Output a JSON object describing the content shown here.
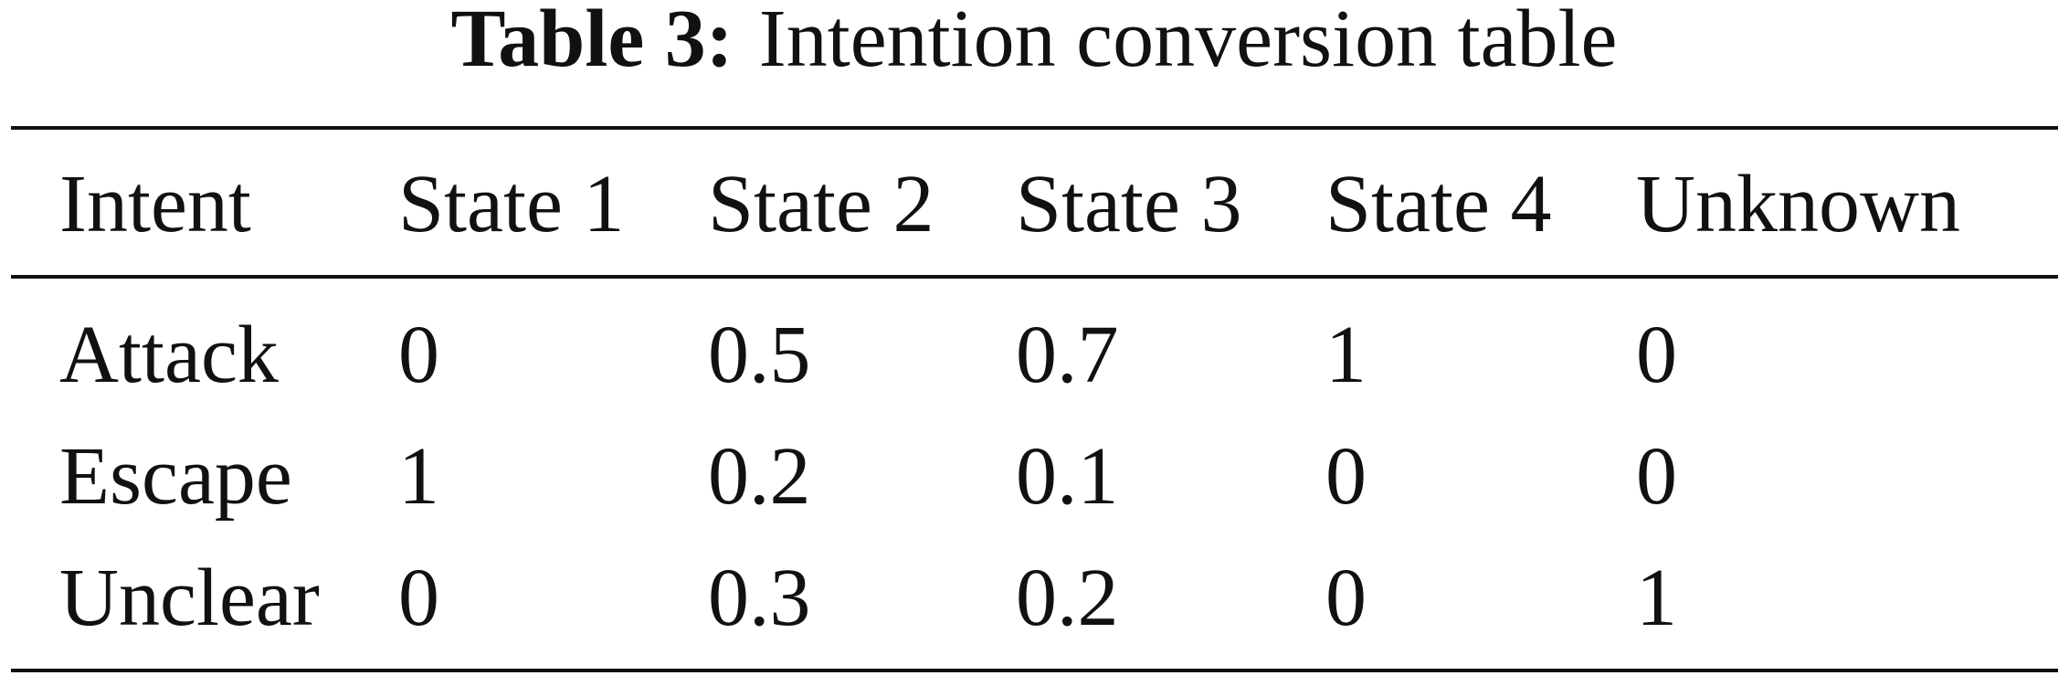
{
  "caption": {
    "label": "Table 3:",
    "title": "Intention conversion table"
  },
  "table": {
    "header": [
      "Intent",
      "State 1",
      "State 2",
      "State 3",
      "State 4",
      "Unknown"
    ],
    "rows": [
      [
        "Attack",
        0,
        0.5,
        0.7,
        1,
        0
      ],
      [
        "Escape",
        1,
        0.2,
        0.1,
        0,
        0
      ],
      [
        "Unclear",
        0,
        0.3,
        0.2,
        0,
        1
      ]
    ]
  }
}
